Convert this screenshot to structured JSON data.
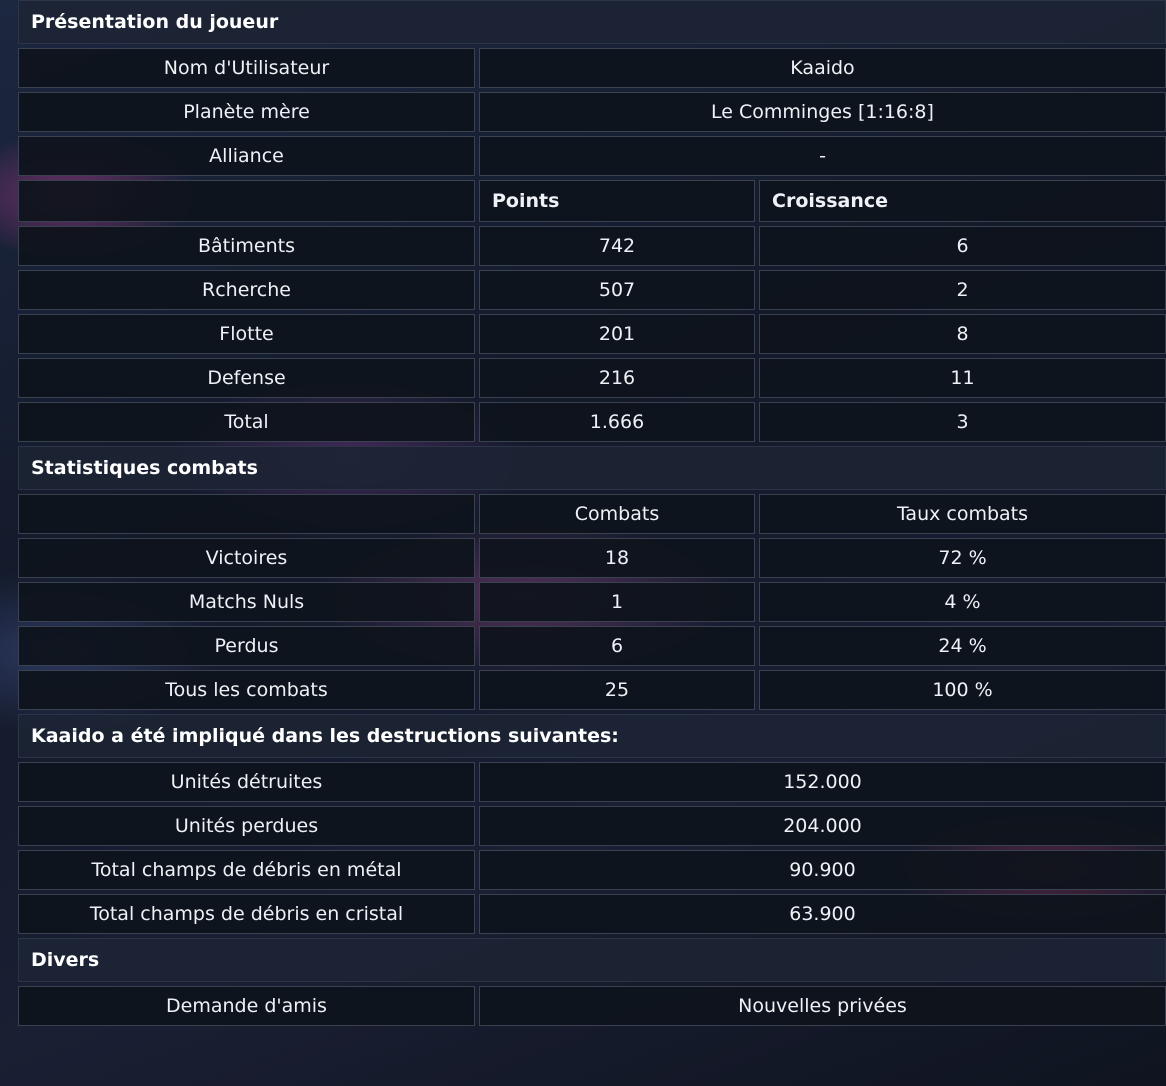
{
  "presentation": {
    "title": "Présentation du joueur",
    "info_rows": [
      {
        "label": "Nom d'Utilisateur",
        "value": "Kaaido"
      },
      {
        "label": "Planète mère",
        "value": "Le Comminges [1:16:8]"
      },
      {
        "label": "Alliance",
        "value": "-"
      }
    ],
    "points_header": {
      "points": "Points",
      "growth": "Croissance"
    },
    "points_rows": [
      {
        "label": "Bâtiments",
        "points": "742",
        "growth": "6"
      },
      {
        "label": "Rcherche",
        "points": "507",
        "growth": "2"
      },
      {
        "label": "Flotte",
        "points": "201",
        "growth": "8"
      },
      {
        "label": "Defense",
        "points": "216",
        "growth": "11"
      },
      {
        "label": "Total",
        "points": "1.666",
        "growth": "3"
      }
    ]
  },
  "combat": {
    "title": "Statistiques combats",
    "header": {
      "combats": "Combats",
      "rate": "Taux combats"
    },
    "rows": [
      {
        "label": "Victoires",
        "combats": "18",
        "rate": "72 %"
      },
      {
        "label": "Matchs Nuls",
        "combats": "1",
        "rate": "4 %"
      },
      {
        "label": "Perdus",
        "combats": "6",
        "rate": "24 %"
      },
      {
        "label": "Tous les combats",
        "combats": "25",
        "rate": "100 %"
      }
    ]
  },
  "destruction": {
    "title": "Kaaido a été impliqué dans les destructions suivantes:",
    "rows": [
      {
        "label": "Unités détruites",
        "value": "152.000"
      },
      {
        "label": "Unités perdues",
        "value": "204.000"
      },
      {
        "label": "Total champs de débris en métal",
        "value": "90.900"
      },
      {
        "label": "Total champs de débris en cristal",
        "value": "63.900"
      }
    ]
  },
  "divers": {
    "title": "Divers",
    "friend_request": "Demande d'amis",
    "private_message": "Nouvelles privées"
  }
}
